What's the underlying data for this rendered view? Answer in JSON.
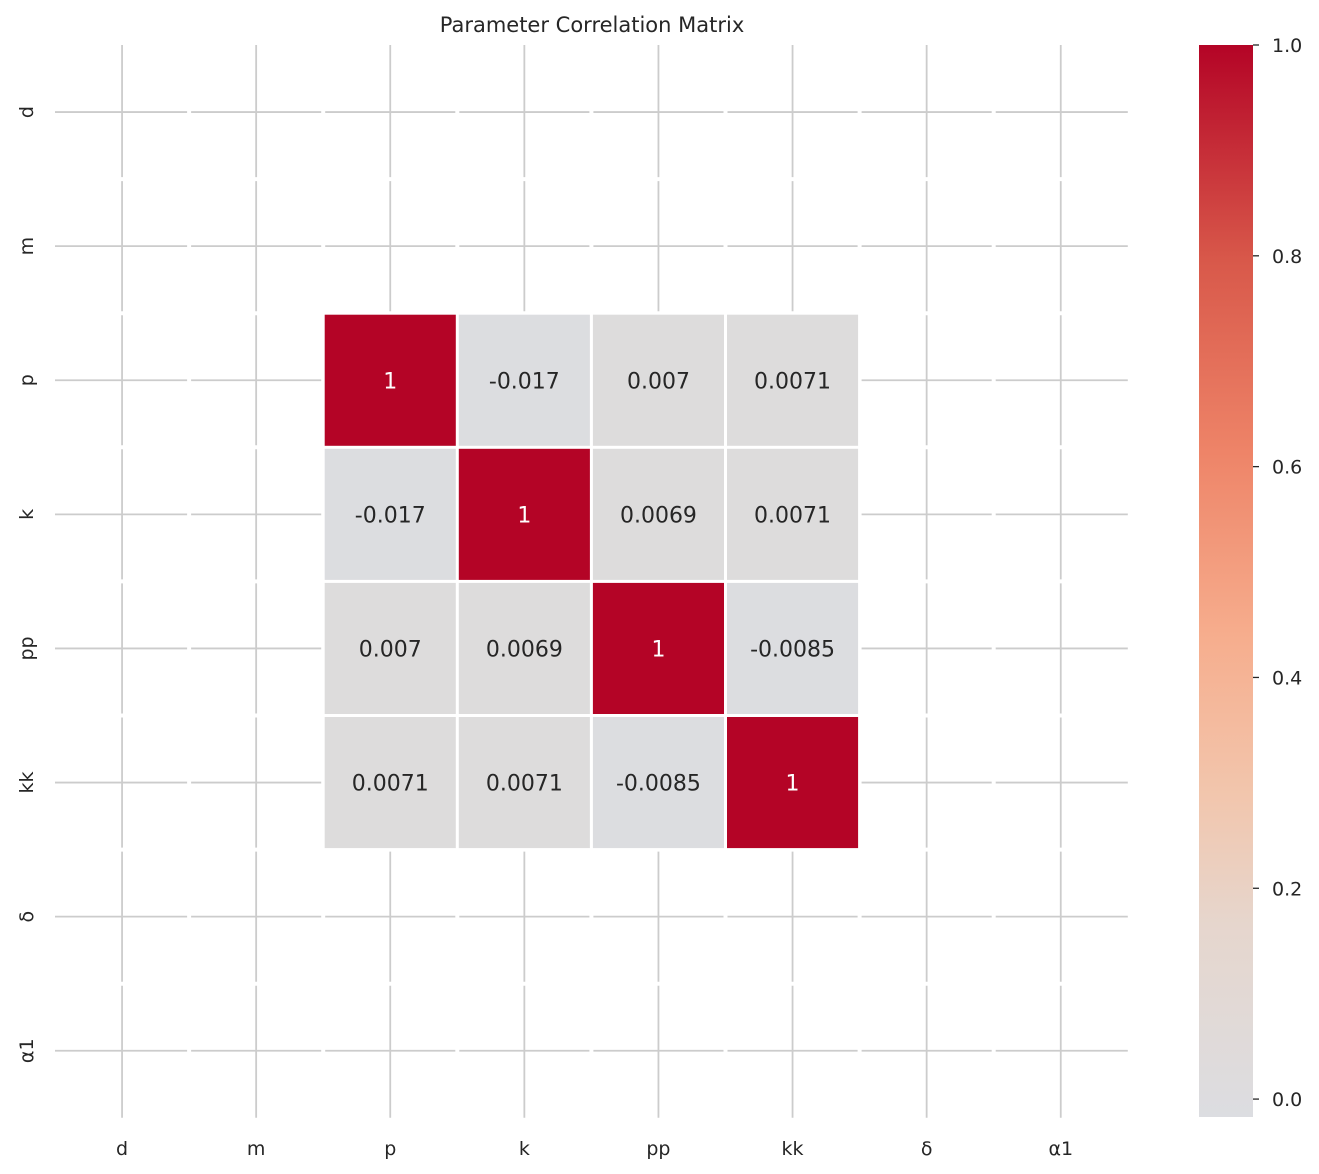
{
  "chart_data": {
    "type": "heatmap",
    "title": "Parameter Correlation Matrix",
    "x_labels": [
      "d",
      "m",
      "p",
      "k",
      "pp",
      "kk",
      "δ",
      "α1"
    ],
    "y_labels": [
      "d",
      "m",
      "p",
      "k",
      "pp",
      "kk",
      "δ",
      "α1"
    ],
    "matrix": [
      [
        null,
        null,
        null,
        null,
        null,
        null,
        null,
        null
      ],
      [
        null,
        null,
        null,
        null,
        null,
        null,
        null,
        null
      ],
      [
        null,
        null,
        1,
        -0.017,
        0.007,
        0.0071,
        null,
        null
      ],
      [
        null,
        null,
        -0.017,
        1,
        0.0069,
        0.0071,
        null,
        null
      ],
      [
        null,
        null,
        0.007,
        0.0069,
        1,
        -0.0085,
        null,
        null
      ],
      [
        null,
        null,
        0.0071,
        0.0071,
        -0.0085,
        1,
        null,
        null
      ],
      [
        null,
        null,
        null,
        null,
        null,
        null,
        null,
        null
      ],
      [
        null,
        null,
        null,
        null,
        null,
        null,
        null,
        null
      ]
    ],
    "annotations": [
      [
        null,
        null,
        null,
        null,
        null,
        null,
        null,
        null
      ],
      [
        null,
        null,
        null,
        null,
        null,
        null,
        null,
        null
      ],
      [
        null,
        null,
        "1",
        "-0.017",
        "0.007",
        "0.0071",
        null,
        null
      ],
      [
        null,
        null,
        "-0.017",
        "1",
        "0.0069",
        "0.0071",
        null,
        null
      ],
      [
        null,
        null,
        "0.007",
        "0.0069",
        "1",
        "-0.0085",
        null,
        null
      ],
      [
        null,
        null,
        "0.0071",
        "0.0071",
        "-0.0085",
        "1",
        null,
        null
      ],
      [
        null,
        null,
        null,
        null,
        null,
        null,
        null,
        null
      ],
      [
        null,
        null,
        null,
        null,
        null,
        null,
        null,
        null
      ]
    ],
    "colorbar": {
      "min": -0.017,
      "max": 1.0,
      "ticks": [
        0.0,
        0.2,
        0.4,
        0.6,
        0.8,
        1.0
      ],
      "tick_labels": [
        "0.0",
        "0.2",
        "0.4",
        "0.6",
        "0.8",
        "1.0"
      ],
      "cmap": "coolwarm",
      "center": 0
    },
    "grid": true,
    "colors": {
      "neutral": "#dddcdc",
      "neutral_cool": "#dcdde0",
      "mid_light": "#efcfbf",
      "mid": "#f4a582",
      "mid_dark": "#d6604d",
      "high": "#b2182b",
      "top": "#b40426",
      "grid": "#cccccc",
      "text_dark": "#262626",
      "text_light": "#ffffff"
    }
  }
}
